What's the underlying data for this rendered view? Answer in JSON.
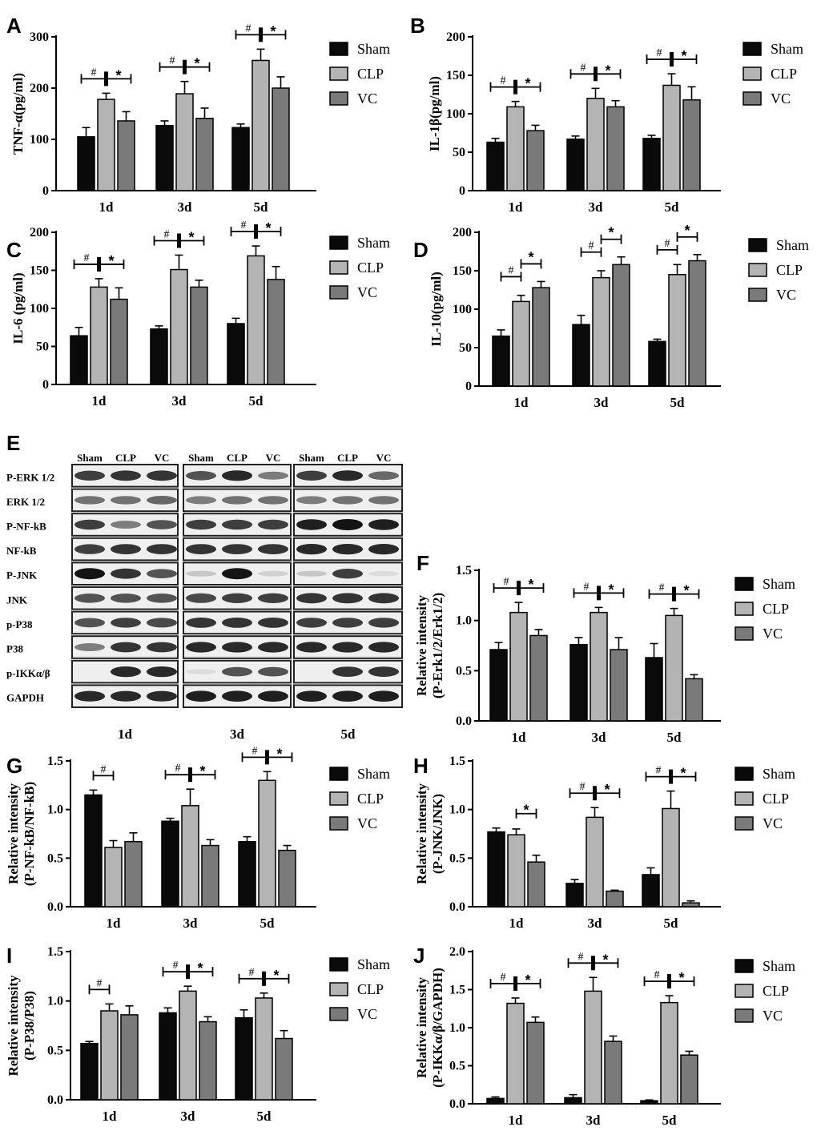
{
  "legend": [
    "Sham",
    "CLP",
    "VC"
  ],
  "colors": {
    "Sham": "#0a0a0a",
    "CLP": "#b4b4b4",
    "VC": "#7a7a7a"
  },
  "chart_data": [
    {
      "panel": "A",
      "type": "bar",
      "ylabel": "TNF-α(pg/ml)",
      "categories": [
        "1d",
        "3d",
        "5d"
      ],
      "ylim": [
        0,
        300
      ],
      "yticks": [
        0,
        100,
        200,
        300
      ],
      "ytick_labels": [
        "0",
        "100",
        "200",
        "300"
      ],
      "series": [
        {
          "name": "Sham",
          "values": [
            105,
            127,
            123
          ],
          "errors": [
            18,
            9,
            7
          ]
        },
        {
          "name": "CLP",
          "values": [
            178,
            189,
            254
          ],
          "errors": [
            12,
            24,
            22
          ]
        },
        {
          "name": "VC",
          "values": [
            136,
            141,
            200
          ],
          "errors": [
            18,
            20,
            22
          ]
        }
      ],
      "annotations": [
        {
          "cat": 0,
          "text": [
            "#",
            "*"
          ],
          "style": "combined"
        },
        {
          "cat": 1,
          "text": [
            "#",
            "*"
          ],
          "style": "combined"
        },
        {
          "cat": 2,
          "text": [
            "#",
            "*"
          ],
          "style": "combined"
        }
      ]
    },
    {
      "panel": "B",
      "type": "bar",
      "ylabel": "IL-1β(pg/ml)",
      "categories": [
        "1d",
        "3d",
        "5d"
      ],
      "ylim": [
        0,
        200
      ],
      "yticks": [
        0,
        50,
        100,
        150,
        200
      ],
      "ytick_labels": [
        "0",
        "50",
        "100",
        "150",
        "200"
      ],
      "series": [
        {
          "name": "Sham",
          "values": [
            63,
            67,
            68
          ],
          "errors": [
            5,
            4,
            4
          ]
        },
        {
          "name": "CLP",
          "values": [
            109,
            120,
            137
          ],
          "errors": [
            7,
            13,
            15
          ]
        },
        {
          "name": "VC",
          "values": [
            78,
            109,
            118
          ],
          "errors": [
            7,
            8,
            17
          ]
        }
      ],
      "annotations": [
        {
          "cat": 0,
          "text": [
            "#",
            "*"
          ],
          "style": "combined"
        },
        {
          "cat": 1,
          "text": [
            "#",
            "*"
          ],
          "style": "combined"
        },
        {
          "cat": 2,
          "text": [
            "#",
            "*"
          ],
          "style": "combined"
        }
      ]
    },
    {
      "panel": "C",
      "type": "bar",
      "ylabel": "IL-6 (pg/ml)",
      "categories": [
        "1d",
        "3d",
        "5d"
      ],
      "ylim": [
        0,
        200
      ],
      "yticks": [
        0,
        50,
        100,
        150,
        200
      ],
      "ytick_labels": [
        "0",
        "50",
        "100",
        "150",
        "200"
      ],
      "series": [
        {
          "name": "Sham",
          "values": [
            64,
            73,
            80
          ],
          "errors": [
            11,
            4,
            7
          ]
        },
        {
          "name": "CLP",
          "values": [
            128,
            151,
            169
          ],
          "errors": [
            11,
            19,
            13
          ]
        },
        {
          "name": "VC",
          "values": [
            112,
            128,
            138
          ],
          "errors": [
            15,
            9,
            17
          ]
        }
      ],
      "annotations": [
        {
          "cat": 0,
          "text": [
            "#",
            "*"
          ],
          "style": "combined"
        },
        {
          "cat": 1,
          "text": [
            "#",
            "*"
          ],
          "style": "combined"
        },
        {
          "cat": 2,
          "text": [
            "#",
            "*"
          ],
          "style": "combined"
        }
      ]
    },
    {
      "panel": "D",
      "type": "bar",
      "ylabel": "IL-10(pg/ml)",
      "categories": [
        "1d",
        "3d",
        "5d"
      ],
      "ylim": [
        0,
        200
      ],
      "yticks": [
        0,
        50,
        100,
        150,
        200
      ],
      "ytick_labels": [
        "0",
        "50",
        "100",
        "150",
        "200"
      ],
      "series": [
        {
          "name": "Sham",
          "values": [
            65,
            80,
            58
          ],
          "errors": [
            8,
            12,
            3
          ]
        },
        {
          "name": "CLP",
          "values": [
            110,
            141,
            145
          ],
          "errors": [
            8,
            9,
            13
          ]
        },
        {
          "name": "VC",
          "values": [
            128,
            158,
            163
          ],
          "errors": [
            8,
            10,
            8
          ]
        }
      ],
      "annotations": [
        {
          "cat": 0,
          "text": [
            "#",
            "*"
          ],
          "style": "separate"
        },
        {
          "cat": 1,
          "text": [
            "#",
            "*"
          ],
          "style": "separate"
        },
        {
          "cat": 2,
          "text": [
            "#",
            "*"
          ],
          "style": "separate"
        }
      ]
    },
    {
      "panel": "F",
      "type": "bar",
      "ylabel": "Relative intensity (P-Erk1/2/Erk1/2)",
      "categories": [
        "1d",
        "3d",
        "5d"
      ],
      "ylim": [
        0,
        1.5
      ],
      "yticks": [
        0,
        0.5,
        1.0,
        1.5
      ],
      "ytick_labels": [
        "0.0",
        "0.5",
        "1.0",
        "1.5"
      ],
      "series": [
        {
          "name": "Sham",
          "values": [
            0.71,
            0.76,
            0.63
          ],
          "errors": [
            0.07,
            0.07,
            0.14
          ]
        },
        {
          "name": "CLP",
          "values": [
            1.08,
            1.08,
            1.05
          ],
          "errors": [
            0.1,
            0.05,
            0.07
          ]
        },
        {
          "name": "VC",
          "values": [
            0.85,
            0.71,
            0.42
          ],
          "errors": [
            0.06,
            0.12,
            0.04
          ]
        }
      ],
      "annotations": [
        {
          "cat": 0,
          "text": [
            "#",
            "*"
          ],
          "style": "combined"
        },
        {
          "cat": 1,
          "text": [
            "#",
            "*"
          ],
          "style": "combined"
        },
        {
          "cat": 2,
          "text": [
            "#",
            "*"
          ],
          "style": "combined"
        }
      ]
    },
    {
      "panel": "G",
      "type": "bar",
      "ylabel": "Relative intensity (P-NF-kB/NF-kB)",
      "categories": [
        "1d",
        "3d",
        "5d"
      ],
      "ylim": [
        0,
        1.5
      ],
      "yticks": [
        0,
        0.5,
        1.0,
        1.5
      ],
      "ytick_labels": [
        "0.0",
        "0.5",
        "1.0",
        "1.5"
      ],
      "series": [
        {
          "name": "Sham",
          "values": [
            1.15,
            0.88,
            0.67
          ],
          "errors": [
            0.05,
            0.03,
            0.05
          ]
        },
        {
          "name": "CLP",
          "values": [
            0.61,
            1.04,
            1.3
          ],
          "errors": [
            0.07,
            0.17,
            0.09
          ]
        },
        {
          "name": "VC",
          "values": [
            0.67,
            0.63,
            0.58
          ],
          "errors": [
            0.09,
            0.06,
            0.05
          ]
        }
      ],
      "annotations": [
        {
          "cat": 0,
          "text": [
            "#"
          ],
          "style": "hash-only"
        },
        {
          "cat": 1,
          "text": [
            "#",
            "*"
          ],
          "style": "combined"
        },
        {
          "cat": 2,
          "text": [
            "#",
            "*"
          ],
          "style": "combined"
        }
      ]
    },
    {
      "panel": "H",
      "type": "bar",
      "ylabel": "Relative intensity (P-JNK/JNK)",
      "categories": [
        "1d",
        "3d",
        "5d"
      ],
      "ylim": [
        0,
        1.5
      ],
      "yticks": [
        0,
        0.5,
        1.0,
        1.5
      ],
      "ytick_labels": [
        "0.0",
        "0.5",
        "1.0",
        "1.5"
      ],
      "series": [
        {
          "name": "Sham",
          "values": [
            0.77,
            0.24,
            0.33
          ],
          "errors": [
            0.04,
            0.04,
            0.07
          ]
        },
        {
          "name": "CLP",
          "values": [
            0.74,
            0.92,
            1.01
          ],
          "errors": [
            0.06,
            0.1,
            0.18
          ]
        },
        {
          "name": "VC",
          "values": [
            0.46,
            0.16,
            0.04
          ],
          "errors": [
            0.07,
            0.01,
            0.02
          ]
        }
      ],
      "annotations": [
        {
          "cat": 0,
          "text": [
            "*"
          ],
          "style": "star-only"
        },
        {
          "cat": 1,
          "text": [
            "#",
            "*"
          ],
          "style": "combined"
        },
        {
          "cat": 2,
          "text": [
            "#",
            "*"
          ],
          "style": "combined"
        }
      ]
    },
    {
      "panel": "I",
      "type": "bar",
      "ylabel": "Relative intensity (P-P38/P38)",
      "categories": [
        "1d",
        "3d",
        "5d"
      ],
      "ylim": [
        0,
        1.5
      ],
      "yticks": [
        0,
        0.5,
        1.0,
        1.5
      ],
      "ytick_labels": [
        "0.0",
        "0.5",
        "1.0",
        "1.5"
      ],
      "series": [
        {
          "name": "Sham",
          "values": [
            0.57,
            0.88,
            0.83
          ],
          "errors": [
            0.02,
            0.05,
            0.08
          ]
        },
        {
          "name": "CLP",
          "values": [
            0.9,
            1.1,
            1.03
          ],
          "errors": [
            0.07,
            0.05,
            0.05
          ]
        },
        {
          "name": "VC",
          "values": [
            0.86,
            0.79,
            0.62
          ],
          "errors": [
            0.09,
            0.05,
            0.08
          ]
        }
      ],
      "annotations": [
        {
          "cat": 0,
          "text": [
            "#"
          ],
          "style": "hash-only"
        },
        {
          "cat": 1,
          "text": [
            "#",
            "*"
          ],
          "style": "combined"
        },
        {
          "cat": 2,
          "text": [
            "#",
            "*"
          ],
          "style": "combined"
        }
      ]
    },
    {
      "panel": "J",
      "type": "bar",
      "ylabel": "Relative intensity (P-IKKα/β/GAPDH)",
      "categories": [
        "1d",
        "3d",
        "5d"
      ],
      "ylim": [
        0,
        2.0
      ],
      "yticks": [
        0,
        0.5,
        1.0,
        1.5,
        2.0
      ],
      "ytick_labels": [
        "0.0",
        "0.5",
        "1.0",
        "1.5",
        "2.0"
      ],
      "series": [
        {
          "name": "Sham",
          "values": [
            0.07,
            0.08,
            0.04
          ],
          "errors": [
            0.02,
            0.04,
            0.01
          ]
        },
        {
          "name": "CLP",
          "values": [
            1.32,
            1.48,
            1.33
          ],
          "errors": [
            0.07,
            0.18,
            0.09
          ]
        },
        {
          "name": "VC",
          "values": [
            1.07,
            0.82,
            0.64
          ],
          "errors": [
            0.07,
            0.07,
            0.05
          ]
        }
      ],
      "annotations": [
        {
          "cat": 0,
          "text": [
            "#",
            "*"
          ],
          "style": "combined"
        },
        {
          "cat": 1,
          "text": [
            "#",
            "*"
          ],
          "style": "combined"
        },
        {
          "cat": 2,
          "text": [
            "#",
            "*"
          ],
          "style": "combined"
        }
      ]
    }
  ],
  "western_blot": {
    "panel": "E",
    "group_header": [
      "Sham",
      "CLP",
      "VC"
    ],
    "timepoints": [
      "1d",
      "3d",
      "5d"
    ],
    "rows": [
      "P-ERK 1/2",
      "ERK 1/2",
      "P-NF-kB",
      "NF-kB",
      "P-JNK",
      "JNK",
      "p-P38",
      "P38",
      "p-IKKα/β",
      "GAPDH"
    ],
    "band_intensity": [
      [
        [
          0.8,
          0.85,
          0.85
        ],
        [
          0.7,
          0.9,
          0.5
        ],
        [
          0.8,
          0.9,
          0.6
        ]
      ],
      [
        [
          0.55,
          0.55,
          0.6
        ],
        [
          0.5,
          0.55,
          0.55
        ],
        [
          0.5,
          0.55,
          0.55
        ]
      ],
      [
        [
          0.8,
          0.5,
          0.7
        ],
        [
          0.8,
          0.8,
          0.8
        ],
        [
          0.95,
          1.0,
          0.95
        ]
      ],
      [
        [
          0.8,
          0.85,
          0.85
        ],
        [
          0.85,
          0.85,
          0.85
        ],
        [
          0.9,
          0.9,
          0.9
        ]
      ],
      [
        [
          1.0,
          0.85,
          0.7
        ],
        [
          0.15,
          1.0,
          0.1
        ],
        [
          0.15,
          0.8,
          0.05
        ]
      ],
      [
        [
          0.7,
          0.7,
          0.7
        ],
        [
          0.75,
          0.8,
          0.8
        ],
        [
          0.85,
          0.85,
          0.85
        ]
      ],
      [
        [
          0.7,
          0.8,
          0.75
        ],
        [
          0.85,
          0.85,
          0.85
        ],
        [
          0.8,
          0.8,
          0.8
        ]
      ],
      [
        [
          0.5,
          0.85,
          0.85
        ],
        [
          0.9,
          0.9,
          0.9
        ],
        [
          0.9,
          0.9,
          0.9
        ]
      ],
      [
        [
          0.0,
          0.9,
          0.9
        ],
        [
          0.05,
          0.7,
          0.7
        ],
        [
          0.0,
          0.85,
          0.85
        ]
      ],
      [
        [
          0.9,
          0.9,
          0.9
        ],
        [
          0.95,
          0.95,
          0.95
        ],
        [
          0.95,
          0.95,
          0.95
        ]
      ]
    ]
  }
}
